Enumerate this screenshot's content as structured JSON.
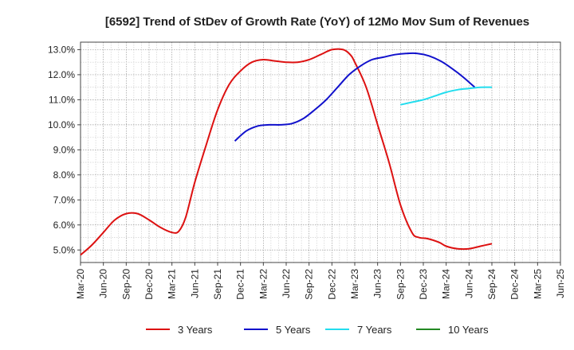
{
  "chart_data": {
    "type": "line",
    "title": "[6592]  Trend of StDev of Growth Rate (YoY) of 12Mo Mov Sum of Revenues",
    "xlabel": "",
    "ylabel": "",
    "x_tick_labels": [
      "Mar-20",
      "Jun-20",
      "Sep-20",
      "Dec-20",
      "Mar-21",
      "Jun-21",
      "Sep-21",
      "Dec-21",
      "Mar-22",
      "Jun-22",
      "Sep-22",
      "Dec-22",
      "Mar-23",
      "Jun-23",
      "Sep-23",
      "Dec-23",
      "Mar-24",
      "Jun-24",
      "Sep-24",
      "Dec-24",
      "Mar-25",
      "Jun-25"
    ],
    "y_tick_labels": [
      "5.0%",
      "6.0%",
      "7.0%",
      "8.0%",
      "9.0%",
      "10.0%",
      "11.0%",
      "12.0%",
      "13.0%"
    ],
    "y_ticks": [
      5,
      6,
      7,
      8,
      9,
      10,
      11,
      12,
      13
    ],
    "ylim": [
      4.5,
      13.3
    ],
    "grid": true,
    "legend_position": "bottom",
    "series": [
      {
        "name": "3 Years",
        "color": "#dd1111",
        "points": [
          [
            0,
            4.8
          ],
          [
            0.5,
            5.2
          ],
          [
            1,
            5.7
          ],
          [
            1.5,
            6.2
          ],
          [
            2,
            6.45
          ],
          [
            2.5,
            6.45
          ],
          [
            3,
            6.2
          ],
          [
            3.5,
            5.9
          ],
          [
            4,
            5.7
          ],
          [
            4.3,
            5.75
          ],
          [
            4.6,
            6.3
          ],
          [
            5,
            7.7
          ],
          [
            5.5,
            9.2
          ],
          [
            6,
            10.6
          ],
          [
            6.5,
            11.6
          ],
          [
            7,
            12.15
          ],
          [
            7.5,
            12.5
          ],
          [
            8,
            12.6
          ],
          [
            8.5,
            12.55
          ],
          [
            9,
            12.5
          ],
          [
            9.5,
            12.5
          ],
          [
            10,
            12.6
          ],
          [
            10.5,
            12.8
          ],
          [
            11,
            13.0
          ],
          [
            11.5,
            13.0
          ],
          [
            11.8,
            12.8
          ],
          [
            12,
            12.5
          ],
          [
            12.5,
            11.5
          ],
          [
            13,
            10.0
          ],
          [
            13.5,
            8.5
          ],
          [
            14,
            6.8
          ],
          [
            14.5,
            5.7
          ],
          [
            14.8,
            5.5
          ],
          [
            15.2,
            5.45
          ],
          [
            15.7,
            5.3
          ],
          [
            16,
            5.15
          ],
          [
            16.5,
            5.05
          ],
          [
            17,
            5.05
          ],
          [
            17.5,
            5.15
          ],
          [
            18,
            5.25
          ]
        ]
      },
      {
        "name": "5 Years",
        "color": "#1111cc",
        "points": [
          [
            6.75,
            9.35
          ],
          [
            7.25,
            9.75
          ],
          [
            7.75,
            9.95
          ],
          [
            8.25,
            10.0
          ],
          [
            8.75,
            10.0
          ],
          [
            9.25,
            10.05
          ],
          [
            9.75,
            10.25
          ],
          [
            10.25,
            10.6
          ],
          [
            10.75,
            11.0
          ],
          [
            11.25,
            11.5
          ],
          [
            11.75,
            12.0
          ],
          [
            12.25,
            12.35
          ],
          [
            12.75,
            12.6
          ],
          [
            13.25,
            12.7
          ],
          [
            13.75,
            12.8
          ],
          [
            14.25,
            12.85
          ],
          [
            14.75,
            12.85
          ],
          [
            15.25,
            12.75
          ],
          [
            15.75,
            12.55
          ],
          [
            16.25,
            12.25
          ],
          [
            16.75,
            11.9
          ],
          [
            17.25,
            11.5
          ]
        ]
      },
      {
        "name": "7 Years",
        "color": "#22ddee",
        "points": [
          [
            14.0,
            10.8
          ],
          [
            14.5,
            10.9
          ],
          [
            15.0,
            11.0
          ],
          [
            15.5,
            11.15
          ],
          [
            16.0,
            11.3
          ],
          [
            16.5,
            11.4
          ],
          [
            17.0,
            11.45
          ],
          [
            17.5,
            11.5
          ],
          [
            18.0,
            11.5
          ]
        ]
      },
      {
        "name": "10 Years",
        "color": "#228822",
        "points": []
      }
    ]
  }
}
